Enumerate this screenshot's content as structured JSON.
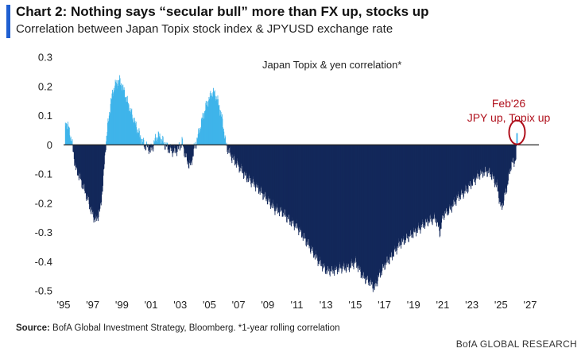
{
  "header": {
    "title": "Chart 2: Nothing says “secular bull” more than FX up, stocks up",
    "subtitle": "Correlation between Japan Topix stock index & JPYUSD exchange rate"
  },
  "footer": {
    "source_label": "Source:",
    "source_text": " BofA Global Investment Strategy, Bloomberg. *1-year rolling correlation",
    "brand": "BofA GLOBAL RESEARCH"
  },
  "colors": {
    "positive": "#3fb4ea",
    "negative": "#13285a",
    "callout": "#b0101c",
    "accent": "#1f5fd1"
  },
  "chart_data": {
    "type": "area",
    "annotation": "Japan Topix & yen correlation*",
    "callout": {
      "line1": "Feb'26",
      "line2": "JPY up, Topix up",
      "x": 2026.1,
      "y": 0.04
    },
    "ylim": [
      -0.5,
      0.3
    ],
    "yticks": [
      0.3,
      0.2,
      0.1,
      0,
      -0.1,
      -0.2,
      -0.3,
      -0.4,
      -0.5
    ],
    "ytick_labels": [
      "0.3",
      "0.2",
      "0.1",
      "0",
      "-0.1",
      "-0.2",
      "-0.3",
      "-0.4",
      "-0.5"
    ],
    "xlim": [
      1995,
      2027.6
    ],
    "xticks": [
      1995,
      1997,
      1999,
      2001,
      2003,
      2005,
      2007,
      2009,
      2011,
      2013,
      2015,
      2017,
      2019,
      2021,
      2023,
      2025,
      2027
    ],
    "xtick_labels": [
      "'95",
      "'97",
      "'99",
      "'01",
      "'03",
      "'05",
      "'07",
      "'09",
      "'11",
      "'13",
      "'15",
      "'17",
      "'19",
      "'21",
      "'23",
      "'25",
      "'27"
    ],
    "series": [
      {
        "x": [
          1995.1,
          1995.3,
          1995.5,
          1995.7,
          1995.8,
          1996.0,
          1996.3,
          1996.6,
          1996.9,
          1997.2,
          1997.5,
          1997.7,
          1997.85,
          1998.0,
          1998.2,
          1998.4,
          1998.6,
          1998.8,
          1999.0,
          1999.2,
          1999.4,
          1999.6,
          1999.9,
          2000.2,
          2000.5,
          2000.8,
          2000.95,
          2001.05,
          2001.3,
          2001.5,
          2001.8,
          2002.1,
          2002.4,
          2002.7,
          2002.9,
          2003.1,
          2003.3,
          2003.5,
          2003.7,
          2003.9,
          2004.2,
          2004.5,
          2004.8,
          2005.0,
          2005.2,
          2005.4,
          2005.6,
          2005.8,
          2006.0,
          2006.1,
          2006.3,
          2006.5,
          2006.8,
          2007.1,
          2007.5,
          2008.0,
          2008.5,
          2009.0,
          2009.5,
          2010.0,
          2010.5,
          2011.0,
          2011.5,
          2012.0,
          2012.5,
          2013.0,
          2013.5,
          2014.0,
          2014.5,
          2015.0,
          2015.5,
          2016.0,
          2016.3,
          2016.6,
          2017.0,
          2017.5,
          2018.0,
          2018.5,
          2019.0,
          2019.5,
          2020.0,
          2020.5,
          2020.8,
          2021.0,
          2021.5,
          2022.0,
          2022.5,
          2023.0,
          2023.5,
          2024.0,
          2024.3,
          2024.7,
          2025.0,
          2025.4,
          2025.7,
          2025.9,
          2026.0,
          2026.05,
          2026.12
        ],
        "y": [
          0.08,
          0.06,
          0.02,
          -0.04,
          -0.08,
          -0.1,
          -0.14,
          -0.18,
          -0.23,
          -0.26,
          -0.22,
          -0.12,
          -0.01,
          0.06,
          0.14,
          0.19,
          0.21,
          0.22,
          0.2,
          0.17,
          0.14,
          0.11,
          0.07,
          0.03,
          0.0,
          -0.01,
          -0.02,
          -0.01,
          0.02,
          0.03,
          0.01,
          -0.01,
          -0.02,
          -0.02,
          -0.01,
          0.01,
          -0.03,
          -0.06,
          -0.07,
          -0.02,
          0.03,
          0.09,
          0.14,
          0.16,
          0.18,
          0.17,
          0.14,
          0.1,
          0.04,
          0.0,
          -0.02,
          -0.04,
          -0.06,
          -0.08,
          -0.11,
          -0.13,
          -0.16,
          -0.19,
          -0.22,
          -0.23,
          -0.26,
          -0.28,
          -0.32,
          -0.36,
          -0.4,
          -0.43,
          -0.43,
          -0.42,
          -0.42,
          -0.4,
          -0.45,
          -0.47,
          -0.49,
          -0.45,
          -0.41,
          -0.38,
          -0.34,
          -0.32,
          -0.3,
          -0.28,
          -0.26,
          -0.25,
          -0.3,
          -0.24,
          -0.22,
          -0.18,
          -0.16,
          -0.13,
          -0.1,
          -0.09,
          -0.1,
          -0.14,
          -0.22,
          -0.14,
          -0.06,
          -0.06,
          -0.05,
          0.04,
          0.04
        ]
      }
    ]
  }
}
